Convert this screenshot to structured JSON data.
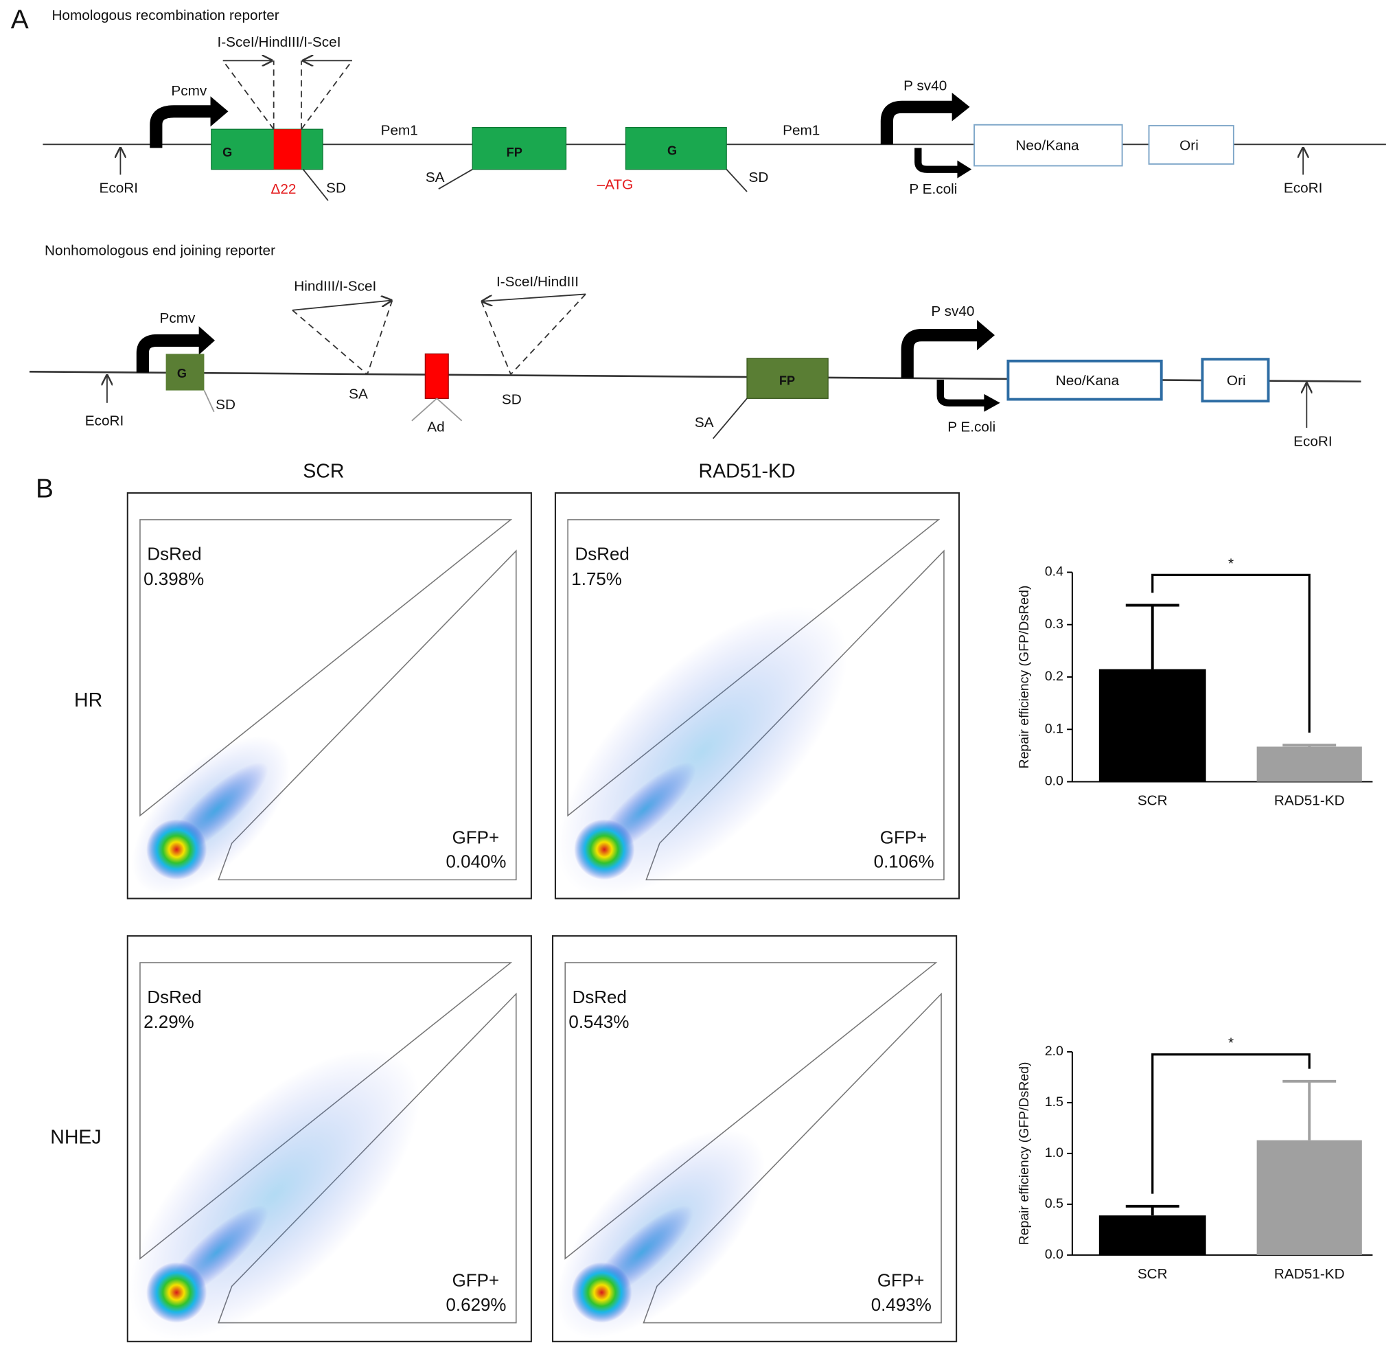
{
  "panel_a": {
    "label": "A",
    "hr": {
      "title": "Homologous recombination reporter",
      "site": "I-SceI/HindIII/I-SceI",
      "pcmv": "Pcmv",
      "g": "G",
      "delta": "Δ22",
      "sd": "SD",
      "pem1": "Pem1",
      "sa": "SA",
      "fp": "FP",
      "atg": "–ATG",
      "g2": "G",
      "sd2": "SD",
      "pem1b": "Pem1",
      "psv40": "P sv40",
      "pecoli": "P E.coli",
      "neo": "Neo/Kana",
      "ori": "Ori",
      "ecori_left": "EcoRI",
      "ecori_right": "EcoRI"
    },
    "nhej": {
      "title": "Nonhomologous end joining reporter",
      "pcmv": "Pcmv",
      "g": "G",
      "sd": "SD",
      "site1": "HindIII/I-SceI",
      "sa": "SA",
      "ad": "Ad",
      "site2": "I-SceI/HindIII",
      "sd2": "SD",
      "fp": "FP",
      "sa2": "SA",
      "psv40": "P sv40",
      "pecoli": "P E.coli",
      "neo": "Neo/Kana",
      "ori": "Ori",
      "ecori_left": "EcoRI",
      "ecori_right": "EcoRI"
    }
  },
  "panel_b": {
    "label": "B",
    "columns": [
      "SCR",
      "RAD51-KD"
    ],
    "rows": [
      "HR",
      "NHEJ"
    ],
    "plots": [
      {
        "dsred_label": "DsRed",
        "dsred_pct": "0.398%",
        "gfp_label": "GFP+",
        "gfp_pct": "0.040%"
      },
      {
        "dsred_label": "DsRed",
        "dsred_pct": "1.75%",
        "gfp_label": "GFP+",
        "gfp_pct": "0.106%"
      },
      {
        "dsred_label": "DsRed",
        "dsred_pct": "2.29%",
        "gfp_label": "GFP+",
        "gfp_pct": "0.629%"
      },
      {
        "dsred_label": "DsRed",
        "dsred_pct": "0.543%",
        "gfp_label": "GFP+",
        "gfp_pct": "0.493%"
      }
    ]
  },
  "chart_data": [
    {
      "type": "bar",
      "y_label": "Repair efficiency (GFP/DsRed)",
      "categories": [
        "SCR",
        "RAD51-KD"
      ],
      "values": [
        0.215,
        0.067
      ],
      "errors": [
        0.122,
        0.003
      ],
      "colors": [
        "#000000",
        "#a0a0a0"
      ],
      "ylim": [
        0,
        0.4
      ],
      "yticks": [
        {
          "value": 0,
          "label": "0.0"
        },
        0.1,
        0.2,
        0.3,
        0.4
      ],
      "annotation": "*"
    },
    {
      "type": "bar",
      "y_label": "Repair efficiency (GFP/DsRed)",
      "categories": [
        "SCR",
        "RAD51-KD"
      ],
      "values": [
        0.39,
        1.13
      ],
      "errors": [
        0.09,
        0.58
      ],
      "colors": [
        "#000000",
        "#a0a0a0"
      ],
      "ylim": [
        0,
        2.0
      ],
      "yticks": [
        {
          "value": 0,
          "label": "0.0"
        },
        0.5,
        {
          "value": 1.0,
          "label": "1.0"
        },
        1.5,
        {
          "value": 2.0,
          "label": "2.0"
        }
      ],
      "annotation": "*"
    }
  ]
}
